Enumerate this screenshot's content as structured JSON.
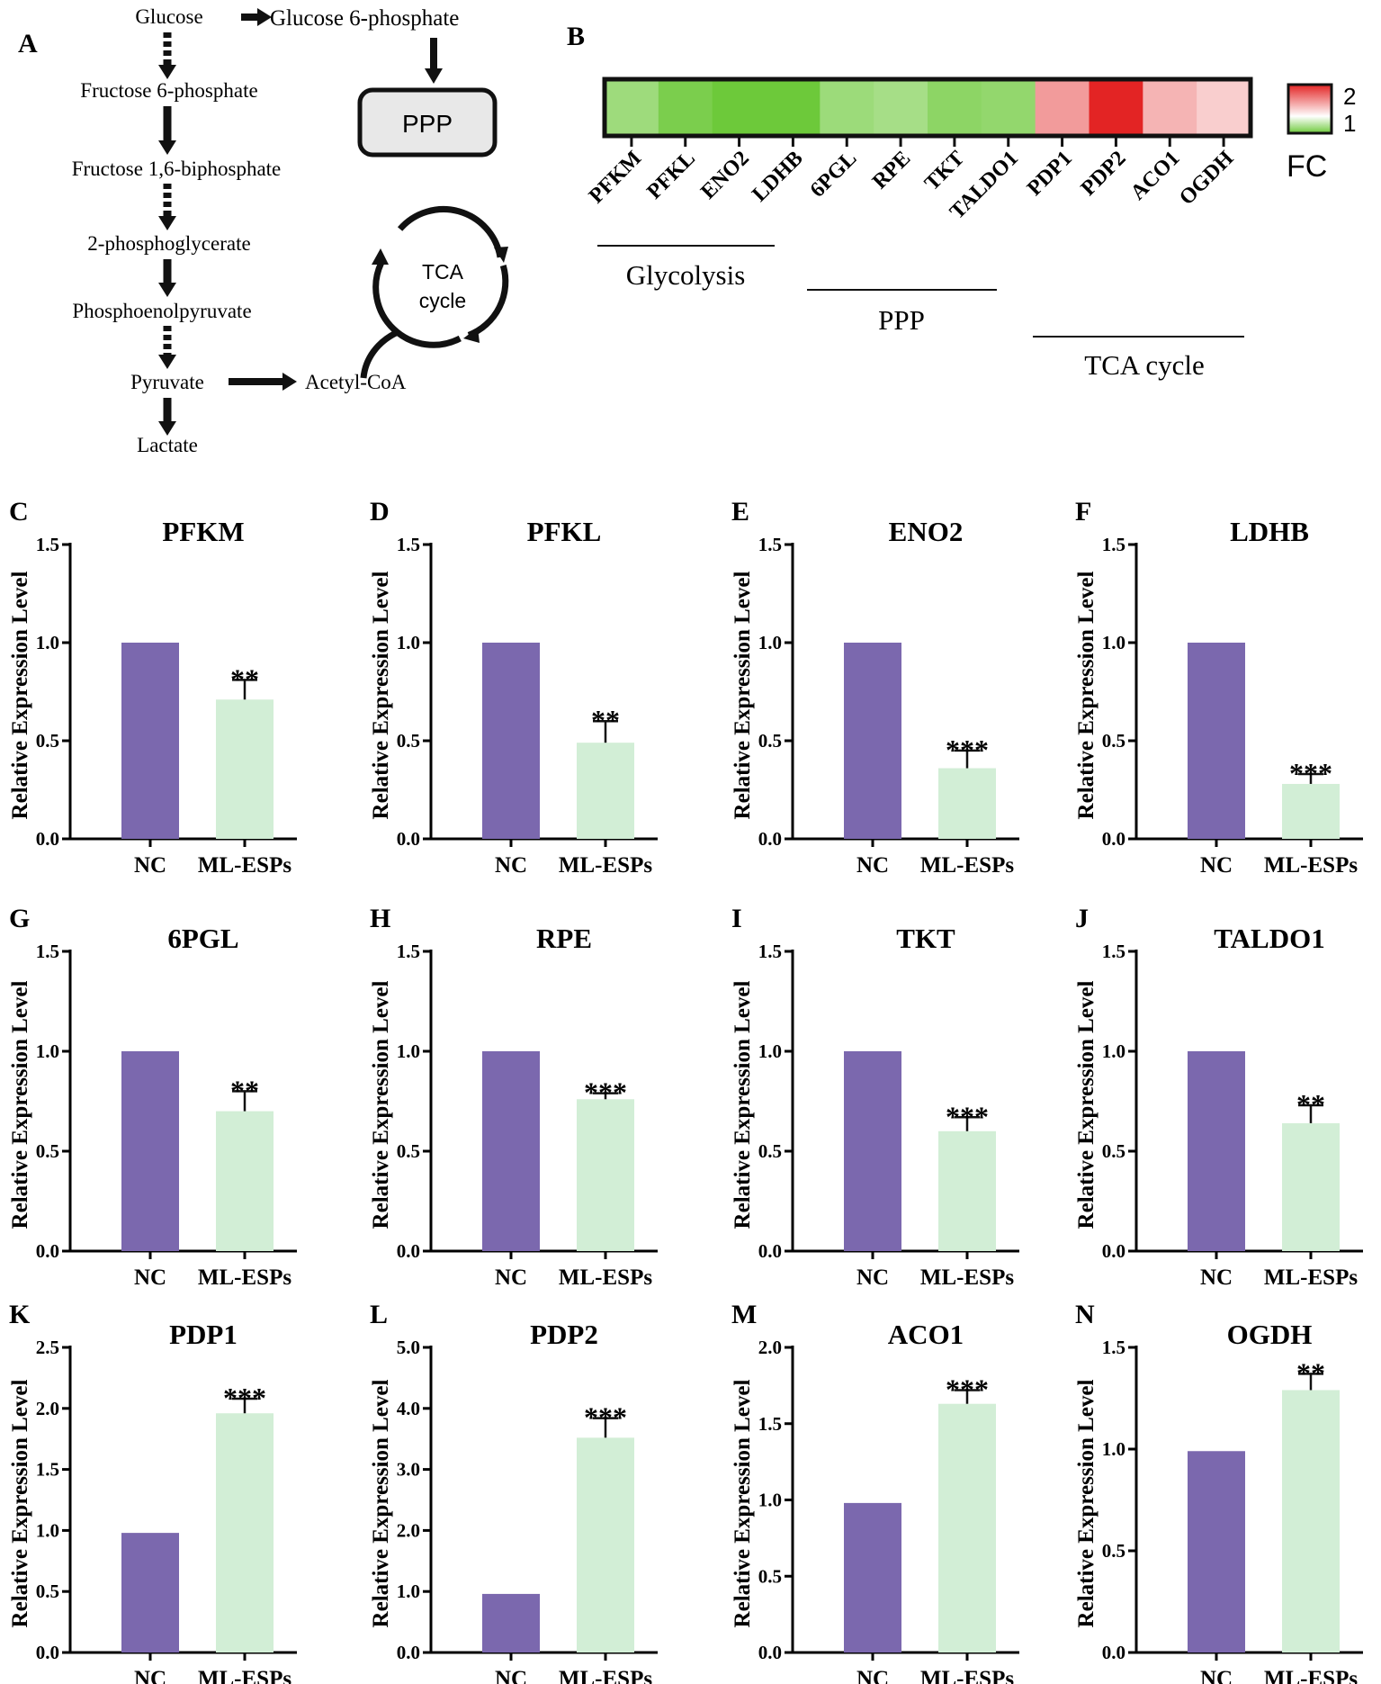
{
  "colors": {
    "nc_bar": "#7b68ae",
    "ml_bar": "#d2eed6",
    "axis": "#000000",
    "heat_low": "#6dc93a",
    "heat_mid": "#ffffff",
    "heat_high": "#e32424",
    "ppp_box_fill": "#e8e8e8"
  },
  "panel_a": {
    "label": "A",
    "glycolysis": [
      "Glucose",
      "Fructose 6-phosphate",
      "Fructose 1,6-biphosphate",
      "2-phosphoglycerate",
      "Phosphoenolpyruvate",
      "Pyruvate",
      "Lactate"
    ],
    "arrow_styles": [
      "dashed",
      "solid",
      "dashed",
      "solid",
      "dashed",
      "solid"
    ],
    "g6p": "Glucose 6-phosphate",
    "ppp": "PPP",
    "acetyl": "Acetyl-CoA",
    "tca_line1": "TCA",
    "tca_line2": "cycle"
  },
  "panel_b": {
    "label": "B",
    "genes": [
      "PFKM",
      "PFKL",
      "ENO2",
      "LDHB",
      "6PGL",
      "RPE",
      "TKT",
      "TALDO1",
      "PDP1",
      "PDP2",
      "ACO1",
      "OGDH"
    ],
    "fold_change": [
      0.71,
      0.49,
      0.36,
      0.28,
      0.7,
      0.76,
      0.6,
      0.64,
      1.96,
      3.52,
      1.63,
      1.29
    ],
    "groups": [
      "Glycolysis",
      "PPP",
      "TCA cycle"
    ],
    "legend_title": "FC",
    "legend_ticks": [
      "2",
      "1"
    ]
  },
  "chart_data": [
    {
      "type": "bar",
      "panel": "C",
      "title": "PFKM",
      "categories": [
        "NC",
        "ML-ESPs"
      ],
      "values": [
        1.0,
        0.71
      ],
      "errors": [
        0,
        0.1
      ],
      "sig": "**",
      "ylim": [
        0,
        1.5
      ],
      "yticks": [
        "0.0",
        "0.5",
        "1.0",
        "1.5"
      ],
      "ylabel": "Relative Expression Level"
    },
    {
      "type": "bar",
      "panel": "D",
      "title": "PFKL",
      "categories": [
        "NC",
        "ML-ESPs"
      ],
      "values": [
        1.0,
        0.49
      ],
      "errors": [
        0,
        0.11
      ],
      "sig": "**",
      "ylim": [
        0,
        1.5
      ],
      "yticks": [
        "0.0",
        "0.5",
        "1.0",
        "1.5"
      ],
      "ylabel": "Relative Expression Level"
    },
    {
      "type": "bar",
      "panel": "E",
      "title": "ENO2",
      "categories": [
        "NC",
        "ML-ESPs"
      ],
      "values": [
        1.0,
        0.36
      ],
      "errors": [
        0,
        0.09
      ],
      "sig": "***",
      "ylim": [
        0,
        1.5
      ],
      "yticks": [
        "0.0",
        "0.5",
        "1.0",
        "1.5"
      ],
      "ylabel": "Relative Expression Level"
    },
    {
      "type": "bar",
      "panel": "F",
      "title": "LDHB",
      "categories": [
        "NC",
        "ML-ESPs"
      ],
      "values": [
        1.0,
        0.28
      ],
      "errors": [
        0,
        0.05
      ],
      "sig": "***",
      "ylim": [
        0,
        1.5
      ],
      "yticks": [
        "0.0",
        "0.5",
        "1.0",
        "1.5"
      ],
      "ylabel": "Relative Expression Level"
    },
    {
      "type": "bar",
      "panel": "G",
      "title": "6PGL",
      "categories": [
        "NC",
        "ML-ESPs"
      ],
      "values": [
        1.0,
        0.7
      ],
      "errors": [
        0,
        0.1
      ],
      "sig": "**",
      "ylim": [
        0,
        1.5
      ],
      "yticks": [
        "0.0",
        "0.5",
        "1.0",
        "1.5"
      ],
      "ylabel": "Relative Expression Level"
    },
    {
      "type": "bar",
      "panel": "H",
      "title": "RPE",
      "categories": [
        "NC",
        "ML-ESPs"
      ],
      "values": [
        1.0,
        0.76
      ],
      "errors": [
        0,
        0.03
      ],
      "sig": "***",
      "ylim": [
        0,
        1.5
      ],
      "yticks": [
        "0.0",
        "0.5",
        "1.0",
        "1.5"
      ],
      "ylabel": "Relative Expression Level"
    },
    {
      "type": "bar",
      "panel": "I",
      "title": "TKT",
      "categories": [
        "NC",
        "ML-ESPs"
      ],
      "values": [
        1.0,
        0.6
      ],
      "errors": [
        0,
        0.07
      ],
      "sig": "***",
      "ylim": [
        0,
        1.5
      ],
      "yticks": [
        "0.0",
        "0.5",
        "1.0",
        "1.5"
      ],
      "ylabel": "Relative Expression Level"
    },
    {
      "type": "bar",
      "panel": "J",
      "title": "TALDO1",
      "categories": [
        "NC",
        "ML-ESPs"
      ],
      "values": [
        1.0,
        0.64
      ],
      "errors": [
        0,
        0.09
      ],
      "sig": "**",
      "ylim": [
        0,
        1.5
      ],
      "yticks": [
        "0.0",
        "0.5",
        "1.0",
        "1.5"
      ],
      "ylabel": "Relative Expression Level"
    },
    {
      "type": "bar",
      "panel": "K",
      "title": "PDP1",
      "categories": [
        "NC",
        "ML-ESPs"
      ],
      "values": [
        0.98,
        1.96
      ],
      "errors": [
        0,
        0.12
      ],
      "sig": "***",
      "ylim": [
        0,
        2.5
      ],
      "yticks": [
        "0.0",
        "0.5",
        "1.0",
        "1.5",
        "2.0",
        "2.5"
      ],
      "ylabel": "Relative Expression Level"
    },
    {
      "type": "bar",
      "panel": "L",
      "title": "PDP2",
      "categories": [
        "NC",
        "ML-ESPs"
      ],
      "values": [
        0.96,
        3.52
      ],
      "errors": [
        0,
        0.32
      ],
      "sig": "***",
      "ylim": [
        0,
        5
      ],
      "yticks": [
        "0.0",
        "1.0",
        "2.0",
        "3.0",
        "4.0",
        "5.0"
      ],
      "ylabel": "Relative Expression Level"
    },
    {
      "type": "bar",
      "panel": "M",
      "title": "ACO1",
      "categories": [
        "NC",
        "ML-ESPs"
      ],
      "values": [
        0.98,
        1.63
      ],
      "errors": [
        0,
        0.09
      ],
      "sig": "***",
      "ylim": [
        0,
        2
      ],
      "yticks": [
        "0.0",
        "0.5",
        "1.0",
        "1.5",
        "2.0"
      ],
      "ylabel": "Relative Expression Level"
    },
    {
      "type": "bar",
      "panel": "N",
      "title": "OGDH",
      "categories": [
        "NC",
        "ML-ESPs"
      ],
      "values": [
        0.99,
        1.29
      ],
      "errors": [
        0,
        0.08
      ],
      "sig": "**",
      "ylim": [
        0,
        1.5
      ],
      "yticks": [
        "0.0",
        "0.5",
        "1.0",
        "1.5"
      ],
      "ylabel": "Relative Expression Level"
    }
  ]
}
